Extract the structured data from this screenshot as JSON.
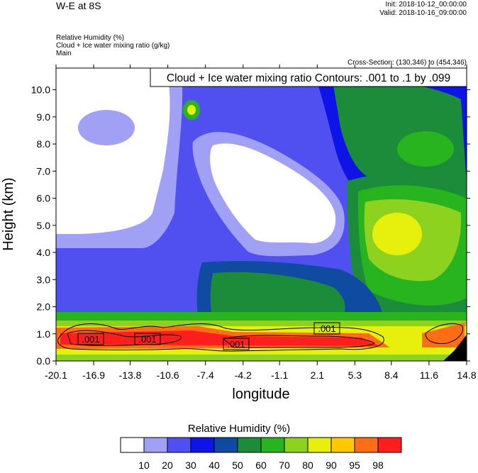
{
  "header": {
    "title": "W-E at 8S",
    "init_line": "Init: 2018-10-12_00:00:00",
    "valid_line": "Valid: 2018-10-16_09:00:00",
    "fields": [
      "Relative Humidity   (%)",
      "Cloud + Ice water mixing ratio   (g/kg)",
      "Main"
    ],
    "cross_section": "Cross-Section: (130,346) to (454,346)"
  },
  "colors": {
    "rh_levels": [
      "#ffffff",
      "#a0a0f5",
      "#5050f0",
      "#0f14e6",
      "#0f4ba0",
      "#1a8c3a",
      "#28b41e",
      "#8cd21e",
      "#e6f00a",
      "#ffc800",
      "#ff6e14",
      "#ff1e1e"
    ],
    "contour": "#000000"
  },
  "chart_data": {
    "type": "heatmap",
    "contour_label": "Cloud + Ice water mixing ratio Contours: .001 to .1 by .099",
    "contour_values": [
      ".001",
      ".001",
      ".001",
      ".001"
    ],
    "xlabel": "longitude",
    "ylabel": "Height (km)",
    "xticks": [
      "-20.1",
      "-16.9",
      "-13.8",
      "-10.6",
      "-7.4",
      "-4.2",
      "-1.1",
      "2.1",
      "5.3",
      "8.4",
      "11.6",
      "14.8"
    ],
    "yticks": [
      "0.0",
      "1.0",
      "2.0",
      "3.0",
      "4.0",
      "5.0",
      "6.0",
      "7.0",
      "8.0",
      "9.0",
      "10.0"
    ],
    "xlim": [
      -20.1,
      14.8
    ],
    "ylim": [
      0,
      10.8
    ],
    "colorbar": {
      "title": "Relative Humidity  (%)",
      "labels": [
        "10",
        "20",
        "30",
        "40",
        "50",
        "60",
        "70",
        "80",
        "90",
        "95",
        "98"
      ]
    }
  }
}
